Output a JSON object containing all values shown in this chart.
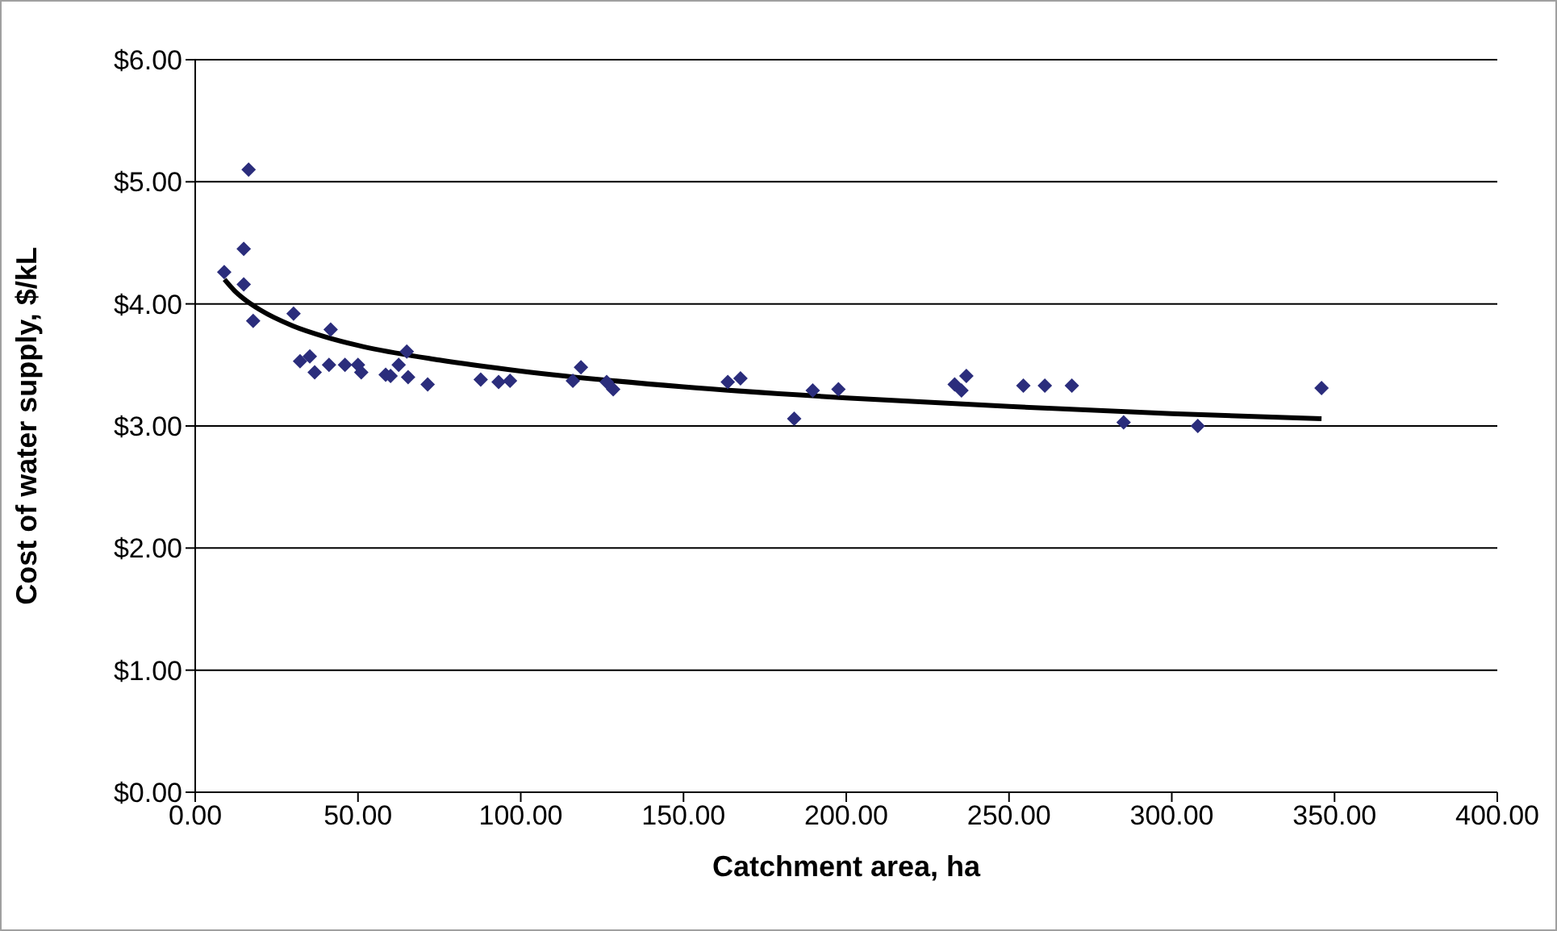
{
  "chart_data": {
    "type": "scatter",
    "xlabel": "Catchment area, ha",
    "ylabel": "Cost of water supply, $/kL",
    "xlim": [
      0,
      400
    ],
    "xticks": [
      {
        "value": 0,
        "label": "0.00"
      },
      {
        "value": 50,
        "label": "50.00"
      },
      {
        "value": 100,
        "label": "100.00"
      },
      {
        "value": 150,
        "label": "150.00"
      },
      {
        "value": 200,
        "label": "200.00"
      },
      {
        "value": 250,
        "label": "250.00"
      },
      {
        "value": 300,
        "label": "300.00"
      },
      {
        "value": 350,
        "label": "350.00"
      },
      {
        "value": 400,
        "label": "400.00"
      }
    ],
    "ylim": [
      0,
      6
    ],
    "yticks": [
      {
        "value": 0,
        "label": "$0.00"
      },
      {
        "value": 1,
        "label": "$1.00"
      },
      {
        "value": 2,
        "label": "$2.00"
      },
      {
        "value": 3,
        "label": "$3.00"
      },
      {
        "value": 4,
        "label": "$4.00"
      },
      {
        "value": 5,
        "label": "$5.00"
      },
      {
        "value": 6,
        "label": "$6.00"
      }
    ],
    "grid": "y",
    "series": [
      {
        "marker": "diamond",
        "color": "#2b2d7c",
        "x": [
          8.9,
          14.9,
          14.9,
          16.4,
          17.8,
          30.2,
          32.2,
          35.2,
          36.7,
          41.6,
          41.1,
          46,
          50,
          51,
          58.5,
          60,
          62.5,
          65,
          65.4,
          71.4,
          87.7,
          93.2,
          96.7,
          116,
          118.5,
          126.4,
          128.4,
          163.6,
          167.5,
          184,
          189.7,
          197.6,
          233.3,
          235.4,
          236.9,
          254.4,
          261,
          269.3,
          285.2,
          308,
          346
        ],
        "values": [
          4.26,
          4.45,
          4.16,
          5.1,
          3.86,
          3.92,
          3.53,
          3.57,
          3.44,
          3.79,
          3.5,
          3.5,
          3.5,
          3.44,
          3.42,
          3.41,
          3.5,
          3.61,
          3.4,
          3.34,
          3.38,
          3.36,
          3.37,
          3.37,
          3.48,
          3.36,
          3.3,
          3.36,
          3.39,
          3.06,
          3.29,
          3.3,
          3.34,
          3.29,
          3.41,
          3.33,
          3.33,
          3.33,
          3.03,
          3.0,
          3.31
        ]
      },
      {
        "type": "line",
        "marker": "none",
        "color": "#000000",
        "x": [
          9,
          12,
          15,
          20,
          30,
          40,
          50,
          75,
          100,
          150,
          200,
          250,
          300,
          346
        ],
        "values": [
          4.2,
          4.11,
          4.04,
          3.95,
          3.82,
          3.73,
          3.66,
          3.54,
          3.45,
          3.32,
          3.23,
          3.16,
          3.1,
          3.06
        ]
      }
    ]
  }
}
